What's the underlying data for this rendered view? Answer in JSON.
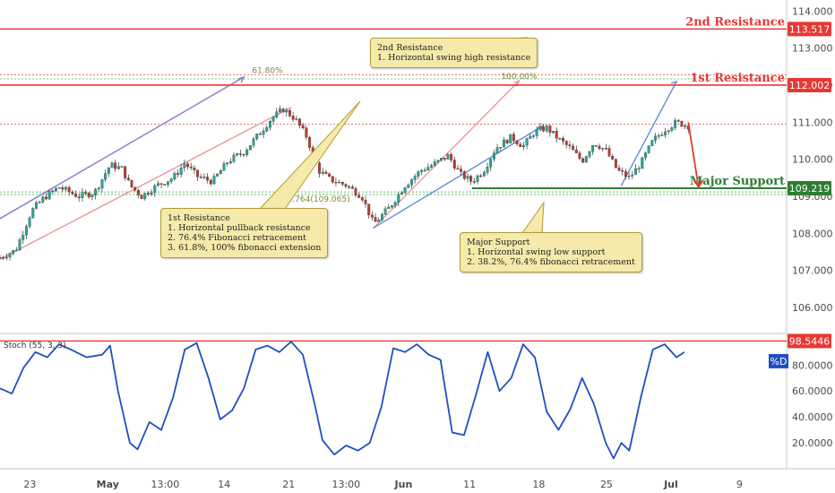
{
  "chart_data": {
    "type": "candlestick",
    "price_axis": {
      "ticks": [
        "114.000",
        "113.000",
        "112.000",
        "111.000",
        "110.000",
        "109.000",
        "108.000",
        "107.000",
        "106.000"
      ],
      "tick_values": [
        114,
        113,
        112,
        111,
        110,
        109,
        108,
        107,
        106
      ],
      "range": [
        105.3,
        114.3
      ]
    },
    "x_axis": {
      "ticks": [
        "23",
        "May",
        "13:00",
        "14",
        "21",
        "13:00",
        "Jun",
        "11",
        "18",
        "25",
        "Jul",
        "9"
      ]
    },
    "levels": [
      {
        "id": "second_resistance",
        "label": "2nd Resistance",
        "value": 113.517,
        "badge": "113.517",
        "color": "#e53935"
      },
      {
        "id": "first_resistance",
        "label": "1st Resistance",
        "value": 112.002,
        "badge": "112.002",
        "color": "#e53935"
      },
      {
        "id": "major_support",
        "label": "Major Support",
        "value": 109.219,
        "badge": "109.219",
        "color": "#2e7d32"
      }
    ],
    "fib_labels": [
      {
        "text": "61.80%",
        "price": 112.28
      },
      {
        "text": "100.00%",
        "price": 112.12
      },
      {
        "text": "0.764(109.065)",
        "price": 108.95
      }
    ],
    "notes": {
      "second_resistance": [
        "2nd Resistance",
        "1. Horizontal swing high resistance"
      ],
      "first_resistance": [
        "1st Resistance",
        "1. Horizontal pullback resistance",
        "2. 76.4% Fibonacci retracement",
        "3. 61.8%, 100% fibonacci extension"
      ],
      "major_support": [
        "Major Support",
        "1. Horizontal swing low support",
        "2. 38.2%, 76.4% fibonacci retracement"
      ]
    },
    "price_path": [
      [
        0,
        107.35
      ],
      [
        0.02,
        107.55
      ],
      [
        0.04,
        108.6
      ],
      [
        0.055,
        108.95
      ],
      [
        0.075,
        109.25
      ],
      [
        0.1,
        109.0
      ],
      [
        0.12,
        109.1
      ],
      [
        0.14,
        109.85
      ],
      [
        0.155,
        109.75
      ],
      [
        0.165,
        109.3
      ],
      [
        0.18,
        109.0
      ],
      [
        0.2,
        109.3
      ],
      [
        0.22,
        109.5
      ],
      [
        0.235,
        109.9
      ],
      [
        0.25,
        109.55
      ],
      [
        0.27,
        109.4
      ],
      [
        0.29,
        109.95
      ],
      [
        0.31,
        110.2
      ],
      [
        0.33,
        110.7
      ],
      [
        0.345,
        111.1
      ],
      [
        0.36,
        111.35
      ],
      [
        0.375,
        111.1
      ],
      [
        0.39,
        110.6
      ],
      [
        0.405,
        109.7
      ],
      [
        0.42,
        109.45
      ],
      [
        0.44,
        109.3
      ],
      [
        0.46,
        109.0
      ],
      [
        0.475,
        108.25
      ],
      [
        0.495,
        108.7
      ],
      [
        0.515,
        109.3
      ],
      [
        0.535,
        109.7
      ],
      [
        0.55,
        109.85
      ],
      [
        0.57,
        110.1
      ],
      [
        0.585,
        109.6
      ],
      [
        0.6,
        109.4
      ],
      [
        0.615,
        109.7
      ],
      [
        0.63,
        110.3
      ],
      [
        0.65,
        110.6
      ],
      [
        0.665,
        110.35
      ],
      [
        0.68,
        110.75
      ],
      [
        0.695,
        110.85
      ],
      [
        0.71,
        110.55
      ],
      [
        0.725,
        110.3
      ],
      [
        0.74,
        109.95
      ],
      [
        0.755,
        110.45
      ],
      [
        0.77,
        110.25
      ],
      [
        0.785,
        109.7
      ],
      [
        0.8,
        109.5
      ],
      [
        0.815,
        109.9
      ],
      [
        0.83,
        110.5
      ],
      [
        0.845,
        110.8
      ],
      [
        0.86,
        111.0
      ],
      [
        0.875,
        110.9
      ]
    ],
    "stochastic": {
      "name": "Stoch (55, 3, 3)",
      "line_label": "%D",
      "level_badge": "98.5446",
      "ticks": [
        "80.0000",
        "60.0000",
        "40.0000",
        "20.0000"
      ],
      "tick_values": [
        80,
        60,
        40,
        20
      ],
      "range": [
        0,
        103
      ],
      "path": [
        [
          0,
          62
        ],
        [
          0.015,
          58
        ],
        [
          0.03,
          78
        ],
        [
          0.045,
          90
        ],
        [
          0.06,
          86
        ],
        [
          0.075,
          96
        ],
        [
          0.09,
          92
        ],
        [
          0.11,
          86
        ],
        [
          0.13,
          88
        ],
        [
          0.14,
          95
        ],
        [
          0.15,
          60
        ],
        [
          0.165,
          20
        ],
        [
          0.175,
          15
        ],
        [
          0.19,
          36
        ],
        [
          0.205,
          30
        ],
        [
          0.22,
          55
        ],
        [
          0.235,
          92
        ],
        [
          0.25,
          97
        ],
        [
          0.265,
          70
        ],
        [
          0.28,
          38
        ],
        [
          0.295,
          45
        ],
        [
          0.31,
          62
        ],
        [
          0.325,
          92
        ],
        [
          0.34,
          95
        ],
        [
          0.355,
          90
        ],
        [
          0.37,
          98
        ],
        [
          0.385,
          88
        ],
        [
          0.4,
          50
        ],
        [
          0.41,
          22
        ],
        [
          0.425,
          11
        ],
        [
          0.44,
          18
        ],
        [
          0.455,
          14
        ],
        [
          0.47,
          20
        ],
        [
          0.485,
          48
        ],
        [
          0.5,
          93
        ],
        [
          0.515,
          90
        ],
        [
          0.53,
          96
        ],
        [
          0.545,
          88
        ],
        [
          0.56,
          84
        ],
        [
          0.575,
          28
        ],
        [
          0.59,
          26
        ],
        [
          0.605,
          57
        ],
        [
          0.62,
          90
        ],
        [
          0.635,
          60
        ],
        [
          0.65,
          70
        ],
        [
          0.665,
          96
        ],
        [
          0.68,
          86
        ],
        [
          0.695,
          44
        ],
        [
          0.71,
          30
        ],
        [
          0.725,
          46
        ],
        [
          0.74,
          70
        ],
        [
          0.755,
          50
        ],
        [
          0.77,
          20
        ],
        [
          0.78,
          8
        ],
        [
          0.79,
          20
        ],
        [
          0.8,
          14
        ],
        [
          0.815,
          56
        ],
        [
          0.83,
          92
        ],
        [
          0.845,
          96
        ],
        [
          0.86,
          86
        ],
        [
          0.87,
          90
        ]
      ]
    },
    "colors": {
      "resistance": "#e53935",
      "support": "#2e7d32",
      "stoch_line": "#1f4fc1",
      "up_candle": "#26a69a",
      "down_candle": "#c0392b"
    }
  }
}
